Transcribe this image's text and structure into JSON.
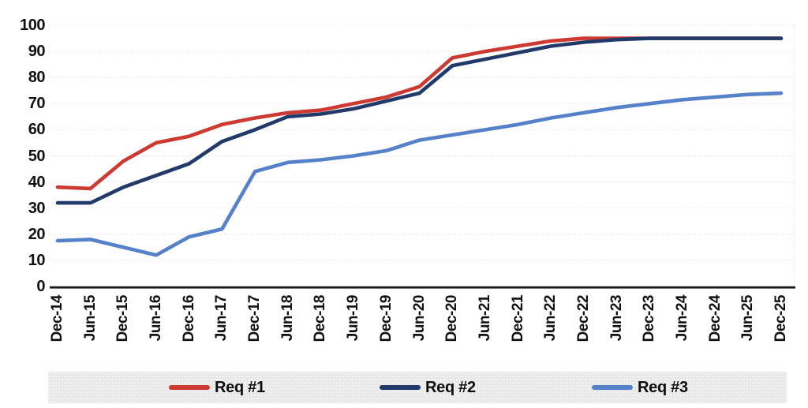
{
  "chart_data": {
    "type": "line",
    "title": "",
    "xlabel": "",
    "ylabel": "",
    "categories": [
      "Dec-14",
      "Jun-15",
      "Dec-15",
      "Jun-16",
      "Dec-16",
      "Jun-17",
      "Dec-17",
      "Jun-18",
      "Dec-18",
      "Jun-19",
      "Dec-19",
      "Jun-20",
      "Dec-20",
      "Jun-21",
      "Dec-21",
      "Jun-22",
      "Dec-22",
      "Jun-23",
      "Dec-23",
      "Jun-24",
      "Dec-24",
      "Jun-25",
      "Dec-25"
    ],
    "series": [
      {
        "name": "Req #1",
        "color": "#ce3a31",
        "values": [
          38,
          37.5,
          48,
          55,
          57.5,
          62,
          64.5,
          66.5,
          67.5,
          70,
          72.5,
          76.5,
          87.5,
          90,
          92,
          94,
          95,
          95,
          95,
          95,
          95,
          95,
          95
        ]
      },
      {
        "name": "Req #2",
        "color": "#223a6a",
        "values": [
          32,
          32,
          38,
          42.5,
          47,
          55.5,
          60,
          65,
          66,
          68,
          71,
          74,
          84.5,
          87,
          89.5,
          92,
          93.5,
          94.5,
          95,
          95,
          95,
          95,
          95
        ]
      },
      {
        "name": "Req #3",
        "color": "#5580ca",
        "values": [
          17.5,
          18,
          15,
          12,
          19,
          22,
          44,
          47.5,
          48.5,
          50,
          52,
          56,
          58,
          60,
          62,
          64.5,
          66.5,
          68.5,
          70,
          71.5,
          72.5,
          73.5,
          74
        ]
      }
    ],
    "ylim": [
      0,
      100
    ],
    "ytick_step": 10,
    "ytick_labels": [
      "0",
      "10",
      "20",
      "30",
      "40",
      "50",
      "60",
      "70",
      "80",
      "90",
      "100"
    ],
    "grid": "horizontal-dotted",
    "gridline_color": "#e2e2e2",
    "axis_color": "#1a1a1a",
    "legend_position": "bottom",
    "legend_background": "#e9e9e9"
  }
}
